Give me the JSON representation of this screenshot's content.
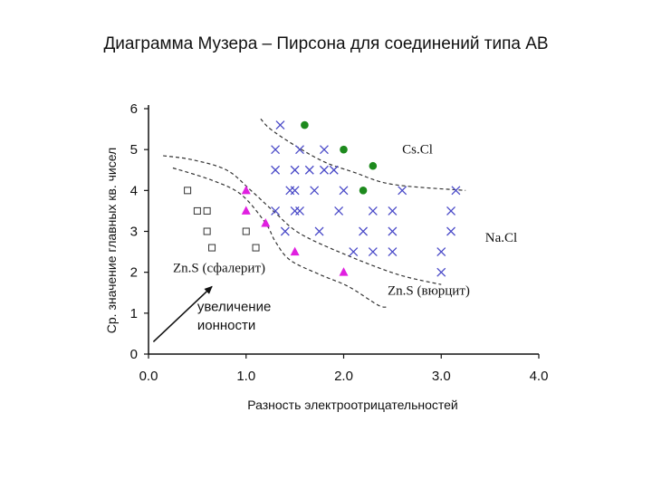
{
  "slide": {
    "title": "Диаграмма Музера – Пирсона для соединений типа AB"
  },
  "colors": {
    "cross": "#4a4ac8",
    "circle": "#1d8a1d",
    "triangle": "#e020e0",
    "square": "#333333",
    "axis": "#111111",
    "boundary": "#333333",
    "arrow": "#111111"
  },
  "chart_data": {
    "type": "scatter",
    "xlabel": "Разность электроотрицательностей",
    "ylabel": "Ср. значение главных кв. чисел",
    "xlim": [
      0,
      4
    ],
    "ylim": [
      0,
      6
    ],
    "x_ticks": [
      "0.0",
      "1.0",
      "2.0",
      "3.0",
      "4.0"
    ],
    "y_ticks": [
      "0",
      "1",
      "2",
      "3",
      "4",
      "5",
      "6"
    ],
    "series": [
      {
        "marker": "square",
        "points": [
          [
            0.4,
            4.0
          ],
          [
            0.5,
            3.5
          ],
          [
            0.6,
            3.5
          ],
          [
            0.6,
            3.0
          ],
          [
            0.65,
            2.6
          ],
          [
            1.0,
            3.0
          ],
          [
            1.1,
            2.6
          ]
        ]
      },
      {
        "marker": "triangle",
        "points": [
          [
            1.0,
            4.0
          ],
          [
            1.0,
            3.5
          ],
          [
            1.2,
            3.2
          ],
          [
            1.5,
            2.5
          ],
          [
            2.0,
            2.0
          ]
        ]
      },
      {
        "marker": "circle",
        "points": [
          [
            1.6,
            5.6
          ],
          [
            2.0,
            5.0
          ],
          [
            2.3,
            4.6
          ],
          [
            2.2,
            4.0
          ]
        ]
      },
      {
        "marker": "cross",
        "points": [
          [
            1.35,
            5.6
          ],
          [
            1.3,
            5.0
          ],
          [
            1.55,
            5.0
          ],
          [
            1.8,
            5.0
          ],
          [
            1.3,
            4.5
          ],
          [
            1.5,
            4.5
          ],
          [
            1.65,
            4.5
          ],
          [
            1.8,
            4.5
          ],
          [
            1.9,
            4.5
          ],
          [
            1.45,
            4.0
          ],
          [
            1.5,
            4.0
          ],
          [
            1.7,
            4.0
          ],
          [
            2.0,
            4.0
          ],
          [
            2.6,
            4.0
          ],
          [
            3.15,
            4.0
          ],
          [
            1.3,
            3.5
          ],
          [
            1.5,
            3.5
          ],
          [
            1.55,
            3.5
          ],
          [
            1.95,
            3.5
          ],
          [
            2.3,
            3.5
          ],
          [
            2.5,
            3.5
          ],
          [
            3.1,
            3.5
          ],
          [
            1.4,
            3.0
          ],
          [
            1.75,
            3.0
          ],
          [
            2.2,
            3.0
          ],
          [
            2.5,
            3.0
          ],
          [
            3.1,
            3.0
          ],
          [
            2.1,
            2.5
          ],
          [
            2.3,
            2.5
          ],
          [
            2.5,
            2.5
          ],
          [
            3.0,
            2.5
          ],
          [
            3.0,
            2.0
          ]
        ]
      }
    ],
    "boundaries": [
      {
        "points": [
          [
            0.15,
            4.85
          ],
          [
            0.45,
            4.75
          ],
          [
            0.8,
            4.5
          ],
          [
            1.05,
            4.0
          ],
          [
            1.3,
            3.45
          ],
          [
            1.55,
            2.95
          ],
          [
            2.0,
            2.45
          ],
          [
            2.55,
            1.95
          ],
          [
            3.0,
            1.7
          ]
        ]
      },
      {
        "points": [
          [
            0.25,
            4.55
          ],
          [
            0.65,
            4.25
          ],
          [
            0.95,
            3.9
          ],
          [
            1.2,
            3.2
          ],
          [
            1.3,
            2.75
          ],
          [
            1.45,
            2.3
          ],
          [
            1.75,
            1.95
          ],
          [
            2.05,
            1.65
          ],
          [
            2.35,
            1.2
          ],
          [
            2.45,
            1.15
          ]
        ]
      },
      {
        "points": [
          [
            1.15,
            5.75
          ],
          [
            1.25,
            5.5
          ],
          [
            1.5,
            5.1
          ],
          [
            1.8,
            4.7
          ],
          [
            2.1,
            4.45
          ],
          [
            2.5,
            4.15
          ],
          [
            3.25,
            4.0
          ]
        ]
      }
    ],
    "annotations": [
      {
        "text": "Cs.Cl",
        "x": 2.6,
        "y": 4.9
      },
      {
        "text": "Na.Cl",
        "x": 3.45,
        "y": 2.75
      },
      {
        "text": "Zn.S (сфалерит)",
        "x": 0.25,
        "y": 2.0
      },
      {
        "text": "Zn.S (вюрцит)",
        "x": 2.45,
        "y": 1.45
      },
      {
        "text": "увеличение",
        "x": 0.5,
        "y": 1.05
      },
      {
        "text": "ионности",
        "x": 0.5,
        "y": 0.6
      }
    ],
    "arrow": {
      "from": [
        0.05,
        0.3
      ],
      "to": [
        0.65,
        1.65
      ]
    }
  }
}
